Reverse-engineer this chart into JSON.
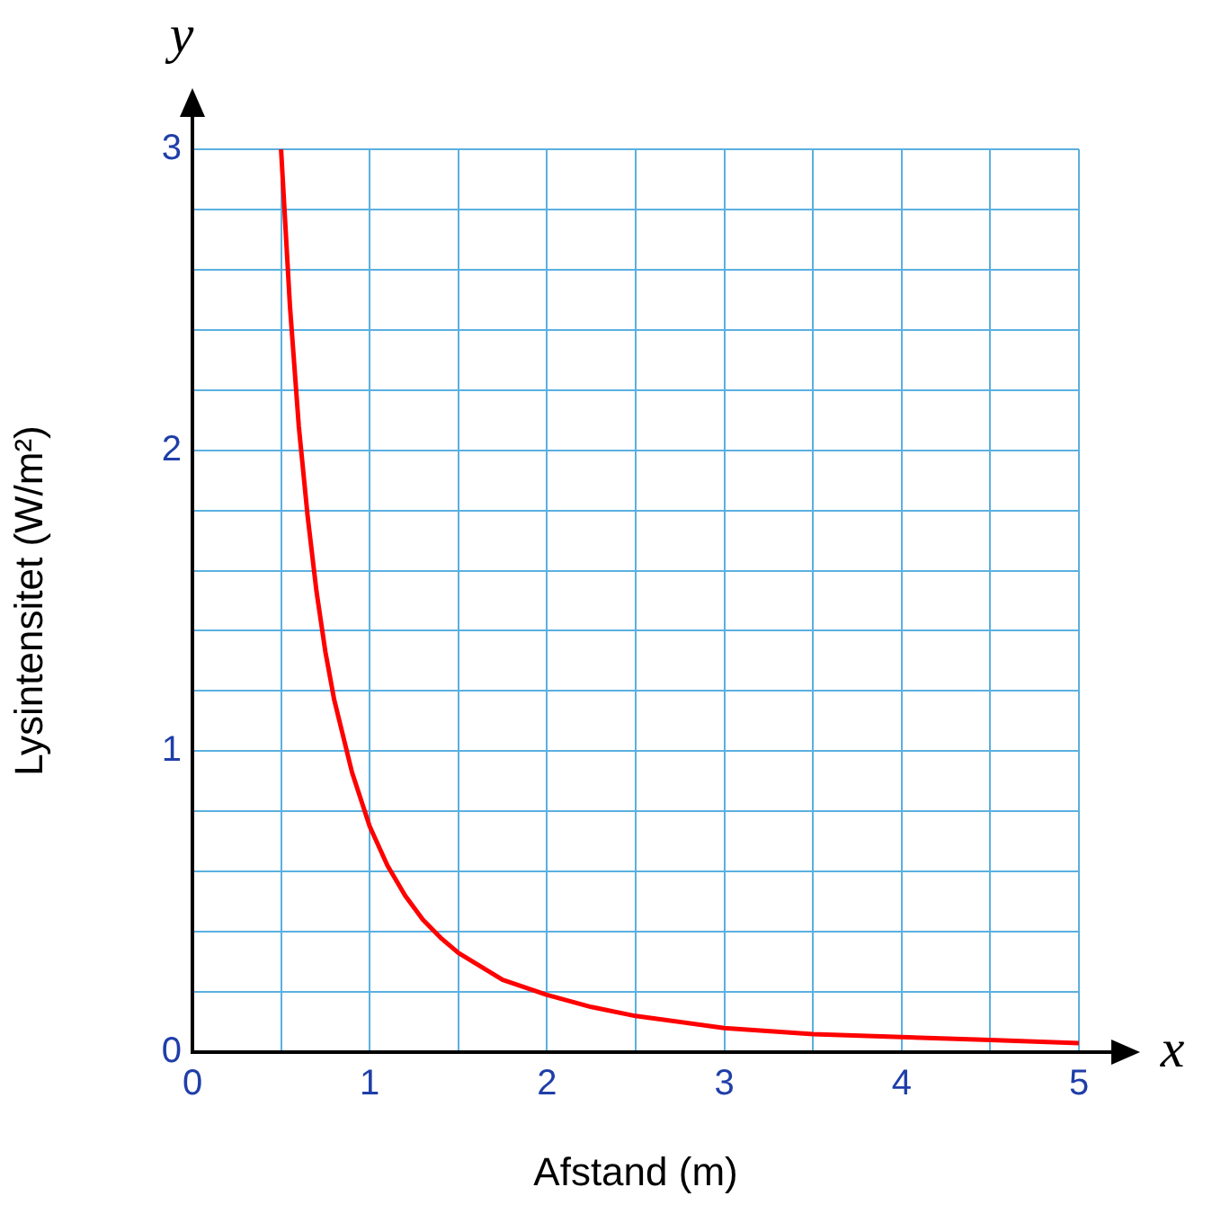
{
  "chart_data": {
    "type": "line",
    "xlabel": "Afstand (m)",
    "ylabel": "Lysintensitet (W/m²)",
    "annotations": [
      "x",
      "y"
    ],
    "x": [
      0.5,
      0.55,
      0.6,
      0.65,
      0.7,
      0.75,
      0.8,
      0.9,
      1,
      1.1,
      1.2,
      1.3,
      1.4,
      1.5,
      1.75,
      2,
      2.25,
      2.5,
      3,
      3.5,
      4,
      4.5,
      5
    ],
    "series": [
      {
        "color": "#ff0000",
        "values": [
          3,
          2.48,
          2.08,
          1.78,
          1.53,
          1.33,
          1.17,
          0.93,
          0.75,
          0.62,
          0.52,
          0.44,
          0.38,
          0.33,
          0.24,
          0.19,
          0.15,
          0.12,
          0.08,
          0.06,
          0.05,
          0.04,
          0.03
        ]
      }
    ],
    "xlim": [
      0,
      5
    ],
    "ylim": [
      0,
      3
    ],
    "xticks": [
      0,
      {
        "value": 0.5,
        "label": null
      },
      1,
      {
        "value": 1.5,
        "label": null
      },
      2,
      {
        "value": 2.5,
        "label": null
      },
      3,
      {
        "value": 3.5,
        "label": null
      },
      4,
      {
        "value": 4.5,
        "label": null
      },
      5
    ],
    "yticks": [
      0,
      {
        "value": 0.2,
        "label": null
      },
      {
        "value": 0.4,
        "label": null
      },
      {
        "value": 0.6,
        "label": null
      },
      {
        "value": 0.8,
        "label": null
      },
      1,
      {
        "value": 1.2,
        "label": null
      },
      {
        "value": 1.4,
        "label": null
      },
      {
        "value": 1.6,
        "label": null
      },
      {
        "value": 1.8,
        "label": null
      },
      2,
      {
        "value": 2.2,
        "label": null
      },
      {
        "value": 2.4,
        "label": null
      },
      {
        "value": 2.6,
        "label": null
      },
      {
        "value": 2.8,
        "label": null
      },
      3
    ],
    "grid": true,
    "marker": "none"
  }
}
